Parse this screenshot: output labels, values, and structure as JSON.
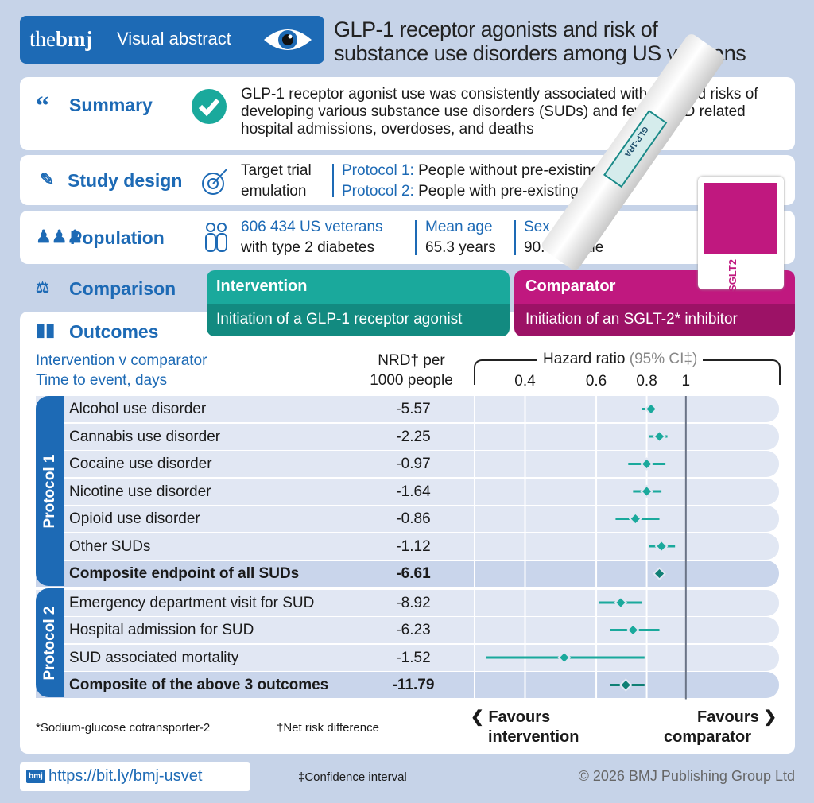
{
  "header": {
    "brand_the": "the",
    "brand_bmj": "bmj",
    "label": "Visual abstract",
    "icon": "eye-icon",
    "title_line1": "GLP-1 receptor agonists and risk of",
    "title_line2": "substance use disorders among US veterans"
  },
  "summary": {
    "label": "Summary",
    "icon": "quote-icon",
    "check_icon": "check-circle-icon",
    "text": "GLP-1 receptor agonist use was consistently associated with reduced risks of developing various substance use disorders (SUDs) and fewer SUD related hospital admissions, overdoses, and deaths"
  },
  "study_design": {
    "label": "Study design",
    "icon": "pencil-icon",
    "target_icon": "target-icon",
    "design_line1": "Target trial",
    "design_line2": "emulation",
    "p1_label": "Protocol 1:",
    "p1_text": "People without pre-existing SUD",
    "p2_label": "Protocol 2:",
    "p2_text": "People with pre-existing SUD"
  },
  "population": {
    "label": "Population",
    "icon": "people-icon",
    "n_label": "606 434 US veterans",
    "n_text": "with type 2 diabetes",
    "age_label": "Mean age",
    "age_text": "65.3 years",
    "sex_label": "Sex",
    "sex_text": "90.3% male"
  },
  "comparison": {
    "label": "Comparison",
    "icon": "scales-icon",
    "intervention_title": "Intervention",
    "intervention_text": "Initiation of a GLP-1 receptor agonist",
    "comparator_title": "Comparator",
    "comparator_text": "Initiation of an SGLT-2* inhibitor",
    "pen_label": "GLP-1RA",
    "box_label": "SGLT2"
  },
  "outcomes": {
    "label": "Outcomes",
    "icon": "bar-chart-icon",
    "col1_line1": "Intervention v comparator",
    "col1_line2": "Time to event, days",
    "col2_line1": "NRD† per",
    "col2_line2": "1000 people",
    "hr_title": "Hazard ratio",
    "hr_ci": "(95% CI‡)",
    "favours_left_1": "Favours",
    "favours_left_2": "intervention",
    "favours_right_1": "Favours",
    "favours_right_2": "comparator",
    "protocol1": "Protocol 1",
    "protocol2": "Protocol 2"
  },
  "chart_data": {
    "type": "forest",
    "xlabel": "Hazard ratio (95% CI‡)",
    "x_scale": "log",
    "xlim": [
      0.3,
      1.7
    ],
    "ticks": [
      "0.4",
      "0.6",
      "0.8",
      "1"
    ],
    "reference_line": 1,
    "rows": [
      {
        "label": "Alcohol use disorder",
        "protocol": 1,
        "nrd": "-5.57",
        "hr": 0.82,
        "lo": 0.78,
        "hi": 0.85,
        "composite": false
      },
      {
        "label": "Cannabis use disorder",
        "protocol": 1,
        "nrd": "-2.25",
        "hr": 0.86,
        "lo": 0.81,
        "hi": 0.9,
        "composite": false
      },
      {
        "label": "Cocaine use disorder",
        "protocol": 1,
        "nrd": "-0.97",
        "hr": 0.8,
        "lo": 0.72,
        "hi": 0.89,
        "composite": false
      },
      {
        "label": "Nicotine use disorder",
        "protocol": 1,
        "nrd": "-1.64",
        "hr": 0.8,
        "lo": 0.74,
        "hi": 0.87,
        "composite": false
      },
      {
        "label": "Opioid use disorder",
        "protocol": 1,
        "nrd": "-0.86",
        "hr": 0.75,
        "lo": 0.67,
        "hi": 0.86,
        "composite": false
      },
      {
        "label": "Other SUDs",
        "protocol": 1,
        "nrd": "-1.12",
        "hr": 0.87,
        "lo": 0.81,
        "hi": 0.94,
        "composite": false
      },
      {
        "label": "Composite endpoint of all SUDs",
        "protocol": 1,
        "nrd": "-6.61",
        "hr": 0.86,
        "lo": 0.84,
        "hi": 0.88,
        "composite": true
      },
      {
        "label": "Emergency department visit for SUD",
        "protocol": 2,
        "nrd": "-8.92",
        "hr": 0.69,
        "lo": 0.61,
        "hi": 0.78,
        "composite": false
      },
      {
        "label": "Hospital admission for SUD",
        "protocol": 2,
        "nrd": "-6.23",
        "hr": 0.74,
        "lo": 0.65,
        "hi": 0.86,
        "composite": false
      },
      {
        "label": "SUD associated mortality",
        "protocol": 2,
        "nrd": "-1.52",
        "hr": 0.5,
        "lo": 0.32,
        "hi": 0.79,
        "composite": false
      },
      {
        "label": "Composite of the above 3 outcomes",
        "protocol": 2,
        "nrd": "-11.79",
        "hr": 0.71,
        "lo": 0.65,
        "hi": 0.79,
        "composite": true
      }
    ],
    "colors": {
      "point": "#1aa99c",
      "composite_point": "#0f7f74"
    }
  },
  "footnotes": {
    "sglt": "*Sodium-glucose cotransporter-2",
    "nrd": "†Net risk difference",
    "ci": "‡Confidence interval"
  },
  "footer": {
    "logo": "bmj",
    "url": "https://bit.ly/bmj-usvet",
    "copyright": "© 2026 BMJ Publishing Group Ltd"
  },
  "colors": {
    "bmj_blue": "#1d6ab5",
    "teal": "#1aa99c",
    "magenta": "#c0187f",
    "background": "#c6d3e8"
  }
}
